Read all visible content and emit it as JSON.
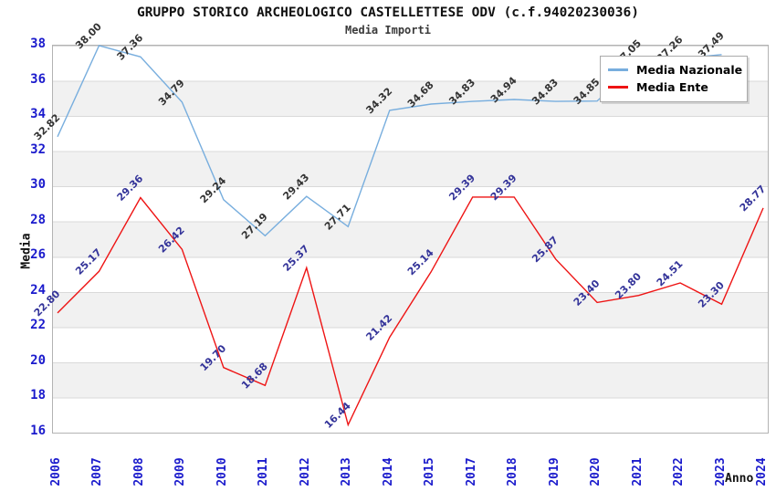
{
  "header": {
    "title": "GRUPPO STORICO ARCHEOLOGICO CASTELLETTESE ODV (c.f.94020230036)",
    "subtitle": "Media Importi"
  },
  "axes": {
    "y_label": "Media",
    "x_label": "Anno",
    "y_ticks": [
      38,
      36,
      34,
      32,
      30,
      28,
      26,
      24,
      22,
      20,
      18,
      16
    ],
    "tick_color": "#1a1acc"
  },
  "legend": {
    "items": [
      {
        "label": "Media Nazionale",
        "color": "#78aede"
      },
      {
        "label": "Media Ente",
        "color": "#ee1414"
      }
    ]
  },
  "chart_data": {
    "type": "line",
    "title": "GRUPPO STORICO ARCHEOLOGICO CASTELLETTESE ODV (c.f.94020230036)",
    "subtitle": "Media Importi",
    "xlabel": "Anno",
    "ylabel": "Media",
    "ylim": [
      16,
      38
    ],
    "grid": "horizontal-bands",
    "legend_position": "top-right-inside",
    "categories": [
      "2006",
      "2007",
      "2008",
      "2009",
      "2010",
      "2011",
      "2012",
      "2013",
      "2014",
      "2015",
      "2017",
      "2018",
      "2019",
      "2020",
      "2021",
      "2022",
      "2023",
      "2024"
    ],
    "series": [
      {
        "name": "Media Nazionale",
        "color": "#78aede",
        "label_color": "#333333",
        "values": [
          32.82,
          38.0,
          37.36,
          34.79,
          29.24,
          27.19,
          29.43,
          27.71,
          34.32,
          34.68,
          34.83,
          34.94,
          34.83,
          34.85,
          37.05,
          37.26,
          37.49,
          null
        ],
        "note_2022": "label partially hidden behind legend"
      },
      {
        "name": "Media Ente",
        "color": "#ee1414",
        "label_color": "#333399",
        "values": [
          22.8,
          25.17,
          29.36,
          26.42,
          19.7,
          18.68,
          25.37,
          16.44,
          21.42,
          25.14,
          29.39,
          29.39,
          25.87,
          23.4,
          23.8,
          24.51,
          23.3,
          28.77
        ]
      }
    ]
  }
}
